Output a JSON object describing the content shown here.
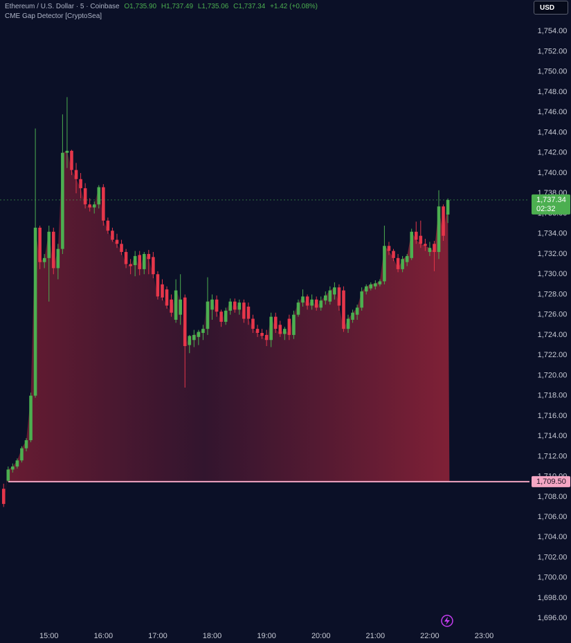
{
  "header": {
    "symbol": "Ethereum / U.S. Dollar · 5 · Coinbase",
    "open": "O1,735.90",
    "high": "H1,737.49",
    "low": "L1,735.06",
    "close": "C1,737.34",
    "change": "+1.42 (+0.08%)",
    "indicator": "CME Gap Detector [CryptoSea]"
  },
  "currency": "USD",
  "chart_data": {
    "type": "candlestick",
    "x": [
      "14:10",
      "14:15",
      "14:20",
      "14:25",
      "14:30",
      "14:35",
      "14:40",
      "14:45",
      "14:50",
      "14:55",
      "15:00",
      "15:05",
      "15:10",
      "15:15",
      "15:20",
      "15:25",
      "15:30",
      "15:35",
      "15:40",
      "15:45",
      "15:50",
      "15:55",
      "16:00",
      "16:05",
      "16:10",
      "16:15",
      "16:20",
      "16:25",
      "16:30",
      "16:35",
      "16:40",
      "16:45",
      "16:50",
      "16:55",
      "17:00",
      "17:05",
      "17:10",
      "17:15",
      "17:20",
      "17:25",
      "17:30",
      "17:35",
      "17:40",
      "17:45",
      "17:50",
      "17:55",
      "18:00",
      "18:05",
      "18:10",
      "18:15",
      "18:20",
      "18:25",
      "18:30",
      "18:35",
      "18:40",
      "18:45",
      "18:50",
      "18:55",
      "19:00",
      "19:05",
      "19:10",
      "19:15",
      "19:20",
      "19:25",
      "19:30",
      "19:35",
      "19:40",
      "19:45",
      "19:50",
      "19:55",
      "20:00",
      "20:05",
      "20:10",
      "20:15",
      "20:20",
      "20:25",
      "20:30",
      "20:35",
      "20:40",
      "20:45",
      "20:50",
      "20:55",
      "21:00",
      "21:05",
      "21:10",
      "21:15",
      "21:20",
      "21:25",
      "21:30",
      "21:35",
      "21:40",
      "21:45",
      "21:50",
      "21:55",
      "22:00",
      "22:05",
      "22:10",
      "22:15",
      "22:20"
    ],
    "ohlc": [
      [
        1708.8,
        1709.3,
        1707.0,
        1707.3
      ],
      [
        1709.6,
        1711.0,
        1709.5,
        1710.7
      ],
      [
        1710.7,
        1711.3,
        1710.4,
        1711.0
      ],
      [
        1711.0,
        1711.8,
        1710.8,
        1711.6
      ],
      [
        1711.6,
        1713.0,
        1711.4,
        1712.8
      ],
      [
        1712.8,
        1713.8,
        1712.5,
        1713.6
      ],
      [
        1713.6,
        1718.3,
        1713.4,
        1718.0
      ],
      [
        1718.0,
        1744.4,
        1717.8,
        1734.6
      ],
      [
        1734.6,
        1734.8,
        1730.5,
        1731.2
      ],
      [
        1731.2,
        1732.0,
        1730.6,
        1731.6
      ],
      [
        1731.6,
        1734.8,
        1727.3,
        1734.2
      ],
      [
        1734.2,
        1734.6,
        1730.0,
        1730.6
      ],
      [
        1730.6,
        1733.0,
        1729.5,
        1732.5
      ],
      [
        1732.5,
        1745.8,
        1732.0,
        1742.0
      ],
      [
        1742.0,
        1747.5,
        1740.5,
        1742.2
      ],
      [
        1742.2,
        1742.3,
        1739.8,
        1740.3
      ],
      [
        1740.3,
        1741.0,
        1738.0,
        1739.4
      ],
      [
        1739.4,
        1740.0,
        1737.5,
        1738.5
      ],
      [
        1738.5,
        1739.0,
        1736.5,
        1736.9
      ],
      [
        1736.9,
        1737.5,
        1736.2,
        1736.6
      ],
      [
        1736.6,
        1737.2,
        1736.0,
        1736.9
      ],
      [
        1736.9,
        1738.8,
        1736.5,
        1738.6
      ],
      [
        1738.6,
        1738.9,
        1734.8,
        1735.3
      ],
      [
        1735.3,
        1735.6,
        1734.0,
        1734.3
      ],
      [
        1734.3,
        1734.6,
        1733.2,
        1733.4
      ],
      [
        1733.4,
        1734.0,
        1732.6,
        1733.0
      ],
      [
        1733.0,
        1733.4,
        1731.9,
        1732.2
      ],
      [
        1732.2,
        1732.5,
        1730.6,
        1731.0
      ],
      [
        1731.0,
        1731.5,
        1730.0,
        1730.8
      ],
      [
        1730.9,
        1732.3,
        1729.8,
        1731.8
      ],
      [
        1731.9,
        1732.3,
        1729.9,
        1730.5
      ],
      [
        1730.5,
        1732.2,
        1730.0,
        1732.0
      ],
      [
        1732.0,
        1732.4,
        1730.0,
        1731.5
      ],
      [
        1731.7,
        1732.2,
        1729.6,
        1730.0
      ],
      [
        1730.0,
        1730.3,
        1727.5,
        1727.8
      ],
      [
        1729.0,
        1729.5,
        1727.4,
        1727.7
      ],
      [
        1728.5,
        1728.8,
        1726.6,
        1726.9
      ],
      [
        1727.5,
        1728.0,
        1725.8,
        1726.2
      ],
      [
        1725.5,
        1729.5,
        1725.2,
        1728.4
      ],
      [
        1726.0,
        1730.0,
        1725.0,
        1727.5
      ],
      [
        1727.7,
        1728.0,
        1718.8,
        1722.9
      ],
      [
        1723.0,
        1724.0,
        1722.2,
        1723.9
      ],
      [
        1723.5,
        1724.5,
        1722.8,
        1724.0
      ],
      [
        1723.8,
        1724.5,
        1723.0,
        1724.3
      ],
      [
        1724.2,
        1725.0,
        1723.5,
        1724.6
      ],
      [
        1724.6,
        1729.7,
        1724.0,
        1727.3
      ],
      [
        1726.5,
        1728.0,
        1725.5,
        1727.5
      ],
      [
        1727.5,
        1727.9,
        1725.8,
        1726.3
      ],
      [
        1726.3,
        1726.5,
        1724.8,
        1725.3
      ],
      [
        1725.3,
        1726.7,
        1725.0,
        1726.4
      ],
      [
        1726.4,
        1727.6,
        1726.0,
        1727.3
      ],
      [
        1727.3,
        1727.6,
        1726.2,
        1726.5
      ],
      [
        1726.5,
        1727.5,
        1726.0,
        1727.2
      ],
      [
        1727.2,
        1727.5,
        1725.2,
        1725.6
      ],
      [
        1726.8,
        1727.2,
        1725.0,
        1725.6
      ],
      [
        1725.6,
        1726.0,
        1724.2,
        1724.6
      ],
      [
        1724.6,
        1725.0,
        1723.8,
        1724.2
      ],
      [
        1724.2,
        1724.6,
        1723.6,
        1723.9
      ],
      [
        1724.0,
        1724.5,
        1722.9,
        1723.5
      ],
      [
        1723.5,
        1726.2,
        1722.8,
        1725.8
      ],
      [
        1725.8,
        1726.2,
        1724.2,
        1724.6
      ],
      [
        1725.0,
        1725.4,
        1723.8,
        1724.1
      ],
      [
        1724.1,
        1724.8,
        1723.5,
        1724.6
      ],
      [
        1725.6,
        1726.0,
        1723.5,
        1724.0
      ],
      [
        1724.0,
        1726.4,
        1723.6,
        1726.0
      ],
      [
        1726.0,
        1727.5,
        1725.8,
        1727.2
      ],
      [
        1727.2,
        1728.5,
        1726.8,
        1727.8
      ],
      [
        1727.8,
        1728.0,
        1726.5,
        1726.9
      ],
      [
        1726.9,
        1728.0,
        1726.5,
        1727.5
      ],
      [
        1727.5,
        1727.8,
        1726.4,
        1726.7
      ],
      [
        1726.7,
        1727.8,
        1726.4,
        1727.4
      ],
      [
        1727.4,
        1728.3,
        1727.0,
        1727.9
      ],
      [
        1727.3,
        1728.8,
        1727.0,
        1728.4
      ],
      [
        1728.0,
        1729.2,
        1727.5,
        1728.7
      ],
      [
        1728.7,
        1729.0,
        1726.4,
        1726.9
      ],
      [
        1728.4,
        1728.8,
        1724.3,
        1724.6
      ],
      [
        1724.6,
        1726.0,
        1724.2,
        1725.6
      ],
      [
        1725.5,
        1726.5,
        1725.2,
        1726.2
      ],
      [
        1726.0,
        1727.0,
        1725.5,
        1726.7
      ],
      [
        1726.7,
        1728.7,
        1726.4,
        1728.3
      ],
      [
        1728.3,
        1729.0,
        1728.0,
        1728.8
      ],
      [
        1728.6,
        1729.2,
        1728.4,
        1729.0
      ],
      [
        1728.8,
        1729.4,
        1728.5,
        1729.1
      ],
      [
        1729.0,
        1729.5,
        1728.8,
        1729.3
      ],
      [
        1729.3,
        1734.8,
        1729.0,
        1732.8
      ],
      [
        1732.8,
        1733.2,
        1731.9,
        1732.3
      ],
      [
        1732.3,
        1732.5,
        1731.3,
        1731.6
      ],
      [
        1731.6,
        1732.0,
        1730.2,
        1730.5
      ],
      [
        1730.5,
        1731.8,
        1730.2,
        1731.5
      ],
      [
        1731.2,
        1732.0,
        1730.8,
        1731.8
      ],
      [
        1731.6,
        1734.5,
        1731.4,
        1734.2
      ],
      [
        1734.2,
        1735.2,
        1733.0,
        1733.4
      ],
      [
        1733.8,
        1735.3,
        1732.6,
        1733.0
      ],
      [
        1733.0,
        1733.5,
        1732.3,
        1732.8
      ],
      [
        1732.2,
        1733.2,
        1731.8,
        1732.6
      ],
      [
        1733.0,
        1733.3,
        1730.3,
        1732.2
      ],
      [
        1732.2,
        1738.3,
        1731.5,
        1736.7
      ],
      [
        1736.7,
        1736.9,
        1733.3,
        1733.8
      ],
      [
        1735.9,
        1737.49,
        1735.06,
        1737.34
      ]
    ],
    "up_color": "#4caf50",
    "down_color": "#e5364a",
    "xlim": [
      "14:06",
      "23:50"
    ],
    "xticks": [
      "15:00",
      "16:00",
      "17:00",
      "18:00",
      "19:00",
      "20:00",
      "21:00",
      "22:00",
      "23:00"
    ],
    "ylim": [
      1695.2,
      1757.1
    ],
    "yticks": [
      {
        "value": 1754,
        "label": "1,754.00"
      },
      {
        "value": 1752,
        "label": "1,752.00"
      },
      {
        "value": 1750,
        "label": "1,750.00"
      },
      {
        "value": 1748,
        "label": "1,748.00"
      },
      {
        "value": 1746,
        "label": "1,746.00"
      },
      {
        "value": 1744,
        "label": "1,744.00"
      },
      {
        "value": 1742,
        "label": "1,742.00"
      },
      {
        "value": 1740,
        "label": "1,740.00"
      },
      {
        "value": 1738,
        "label": "1,738.00"
      },
      {
        "value": 1736,
        "label": "1,736.00"
      },
      {
        "value": 1734,
        "label": "1,734.00"
      },
      {
        "value": 1732,
        "label": "1,732.00"
      },
      {
        "value": 1730,
        "label": "1,730.00"
      },
      {
        "value": 1728,
        "label": "1,728.00"
      },
      {
        "value": 1726,
        "label": "1,726.00"
      },
      {
        "value": 1724,
        "label": "1,724.00"
      },
      {
        "value": 1722,
        "label": "1,722.00"
      },
      {
        "value": 1720,
        "label": "1,720.00"
      },
      {
        "value": 1718,
        "label": "1,718.00"
      },
      {
        "value": 1716,
        "label": "1,716.00"
      },
      {
        "value": 1714,
        "label": "1,714.00"
      },
      {
        "value": 1712,
        "label": "1,712.00"
      },
      {
        "value": 1710,
        "label": "1,710.00"
      },
      {
        "value": 1708,
        "label": "1,708.00"
      },
      {
        "value": 1706,
        "label": "1,706.00"
      },
      {
        "value": 1704,
        "label": "1,704.00"
      },
      {
        "value": 1702,
        "label": "1,702.00"
      },
      {
        "value": 1700,
        "label": "1,700.00"
      },
      {
        "value": 1698,
        "label": "1,698.00"
      },
      {
        "value": 1696,
        "label": "1,696.00"
      }
    ],
    "gap": {
      "value": 1709.5,
      "label": "1,709.50",
      "color": "#f4a6c4"
    },
    "last_price": {
      "value": 1737.34,
      "label": "1,737.34"
    },
    "countdown": "02:32"
  }
}
